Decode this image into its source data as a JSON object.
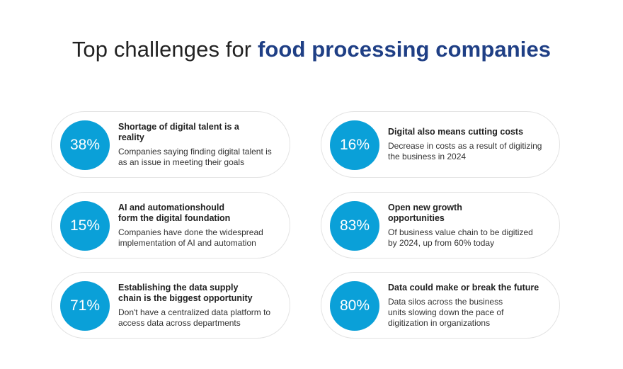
{
  "title": {
    "prefix": "Top challenges for",
    "accent": "food processing companies"
  },
  "cards": [
    {
      "percent": "38%",
      "heading": "Shortage of digital talent is a reality",
      "desc": "Companies saying finding digital talent is as an issue in meeting their goals"
    },
    {
      "percent": "16%",
      "heading": "Digital also means cutting costs",
      "desc": "Decrease in costs as a result of digitizing the business in 2024"
    },
    {
      "percent": "15%",
      "heading": "AI and automationshould form the digital foundation",
      "desc": "Companies have done the widespread implementation of AI and automation"
    },
    {
      "percent": "83%",
      "heading": "Open new growth opportunities",
      "desc": "Of business value chain to be digitized by 2024, up from 60% today"
    },
    {
      "percent": "71%",
      "heading": "Establishing the data supply chain is the biggest opportunity",
      "desc": "Don't have a centralized data platform to access data across departments"
    },
    {
      "percent": "80%",
      "heading": "Data could make or break the future",
      "desc": "Data silos across the business units slowing down the pace of digitization in organizations"
    }
  ],
  "colors": {
    "accent": "#1f3f85",
    "circle": "#0aa0d8",
    "card_border": "#e3e3e3"
  }
}
